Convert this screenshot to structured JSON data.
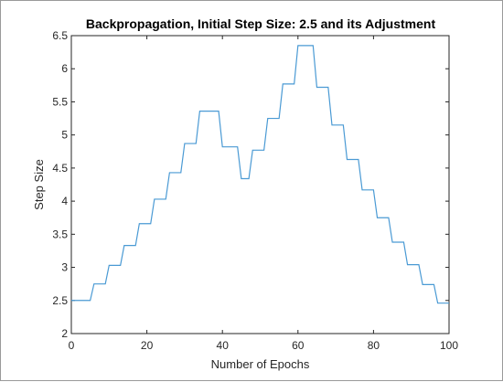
{
  "chart_data": {
    "type": "line",
    "title": "Backpropagation, Initial Step Size: 2.5 and its Adjustment",
    "xlabel": "Number of Epochs",
    "ylabel": "Step Size",
    "xlim": [
      0,
      100
    ],
    "ylim": [
      2,
      6.5
    ],
    "xticks": [
      0,
      20,
      40,
      60,
      80,
      100
    ],
    "yticks": [
      2,
      2.5,
      3,
      3.5,
      4,
      4.5,
      5,
      5.5,
      6,
      6.5
    ],
    "grid": false,
    "line_color": "#4a9ad4",
    "series": [
      {
        "step": "post",
        "x": [
          0,
          5,
          6,
          9,
          10,
          13,
          14,
          17,
          18,
          21,
          22,
          25,
          26,
          29,
          30,
          33,
          34,
          39,
          40,
          44,
          45,
          47,
          48,
          51,
          52,
          55,
          56,
          59,
          60,
          64,
          65,
          68,
          69,
          72,
          73,
          76,
          77,
          80,
          81,
          84,
          85,
          88,
          89,
          92,
          93,
          96,
          97,
          100
        ],
        "y": [
          2.5,
          2.5,
          2.75,
          2.75,
          3.03,
          3.03,
          3.33,
          3.33,
          3.66,
          3.66,
          4.03,
          4.03,
          4.43,
          4.43,
          4.87,
          4.87,
          5.36,
          5.36,
          4.82,
          4.82,
          4.34,
          4.34,
          4.77,
          4.77,
          5.25,
          5.25,
          5.77,
          5.77,
          6.35,
          6.35,
          5.72,
          5.72,
          5.15,
          5.15,
          4.63,
          4.63,
          4.17,
          4.17,
          3.75,
          3.75,
          3.38,
          3.38,
          3.04,
          3.04,
          2.74,
          2.74,
          2.46,
          2.46
        ]
      }
    ]
  }
}
